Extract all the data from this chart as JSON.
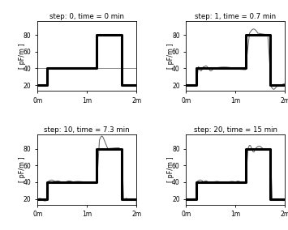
{
  "titles": [
    "step: 0, time = 0 min",
    "step: 1, time = 0.7 min",
    "step: 10, time = 7.3 min",
    "step: 20, time = 15 min"
  ],
  "ylabel_label": "[ pF/m ]",
  "xlim": [
    0,
    2
  ],
  "ylim": [
    13,
    97
  ],
  "yticks": [
    20,
    40,
    60,
    80
  ],
  "xtick_labels": [
    "0m",
    "1m",
    "2m"
  ],
  "xtick_positions": [
    0,
    1,
    2
  ],
  "true_profile_lw": 2.2,
  "recon_profile_lw": 0.75,
  "true_color": "black",
  "recon_color": "#666666",
  "background": "white",
  "true_x": [
    0,
    0.2,
    0.2,
    1.2,
    1.2,
    1.7,
    1.7,
    2.0
  ],
  "true_y": [
    20,
    20,
    40,
    40,
    80,
    80,
    20,
    20
  ]
}
